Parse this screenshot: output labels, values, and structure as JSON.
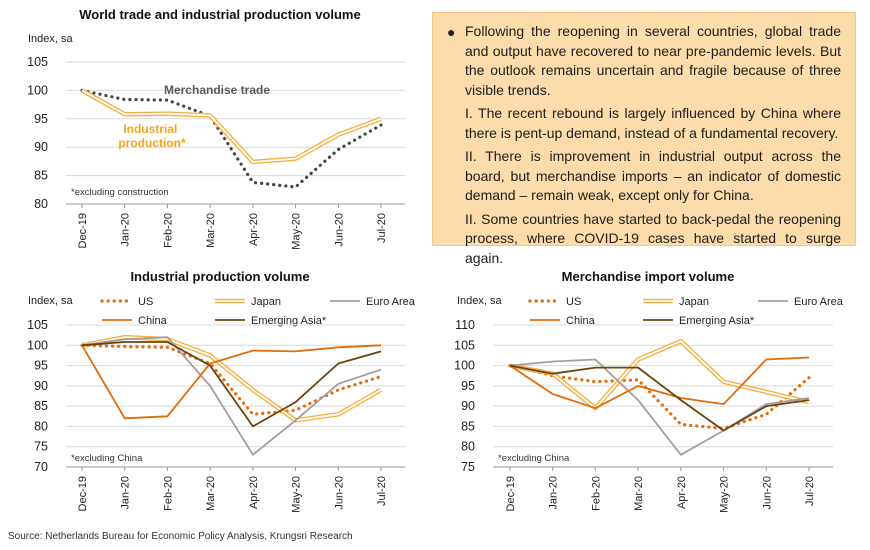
{
  "colors": {
    "gold": "#f5b041",
    "orange": "#e36c0a",
    "gray": "#a89c9a",
    "brown": "#6b4410",
    "dotted": "#454545",
    "infobox": "#fbdcaa"
  },
  "info_box": {
    "bullet": "Following the reopening in several countries, global trade and output have recovered to near pre-pandemic levels. But the outlook remains uncertain and fragile because of three visible trends.",
    "points": [
      "I. The recent rebound is largely influenced by China where there is pent-up demand, instead of a fundamental recovery.",
      "II. There is improvement in industrial output across the board, but merchandise imports – an indicator of domestic demand – remain weak, except only for China.",
      "II. Some countries have started to back-pedal the reopening process, where COVID-19 cases have started to surge again."
    ]
  },
  "source": "Source: Netherlands Bureau for Economic Policy Analysis, Krungsri Research",
  "chart_data": [
    {
      "type": "line",
      "title": "World trade and industrial production volume",
      "ylabel": "Index, sa",
      "note": "*excluding construction",
      "categories": [
        "Dec-19",
        "Jan-20",
        "Feb-20",
        "Mar-20",
        "Apr-20",
        "May-20",
        "Jun-20",
        "Jul-20"
      ],
      "ylim": [
        80,
        105
      ],
      "yticks": [
        80,
        85,
        90,
        95,
        100,
        105
      ],
      "grid": true,
      "series": [
        {
          "name": "Merchandise trade",
          "style": "dotted",
          "color": "#454545",
          "values": [
            100,
            98.4,
            98.3,
            95.5,
            83.8,
            83.0,
            89.6,
            93.9
          ]
        },
        {
          "name": "Industrial production*",
          "style": "double",
          "color": "#f5b041",
          "values": [
            100,
            95.8,
            95.9,
            95.6,
            87.4,
            88.0,
            92.2,
            95.0
          ]
        }
      ]
    },
    {
      "type": "line",
      "title": "Industrial production volume",
      "ylabel": "Index, sa",
      "note": "*excluding China",
      "categories": [
        "Dec-19",
        "Jan-20",
        "Feb-20",
        "Mar-20",
        "Apr-20",
        "May-20",
        "Jun-20",
        "Jul-20"
      ],
      "ylim": [
        70,
        105
      ],
      "yticks": [
        70,
        75,
        80,
        85,
        90,
        95,
        100,
        105
      ],
      "grid": true,
      "legend": "top",
      "series": [
        {
          "name": "US",
          "style": "dotted",
          "color": "#e36c0a",
          "values": [
            100,
            99.7,
            99.5,
            95.5,
            83.0,
            84.0,
            89.0,
            92.3
          ]
        },
        {
          "name": "Japan",
          "style": "double",
          "color": "#f5b041",
          "values": [
            100,
            102.0,
            101.5,
            97.5,
            89.0,
            81.5,
            83.0,
            89.0
          ]
        },
        {
          "name": "Euro Area",
          "style": "solid",
          "color": "#a89c9a",
          "values": [
            100,
            101.5,
            102.0,
            90.0,
            73.0,
            81.5,
            90.5,
            94.0
          ]
        },
        {
          "name": "China",
          "style": "solid",
          "color": "#e36c0a",
          "values": [
            100,
            82.0,
            82.5,
            95.5,
            98.7,
            98.5,
            99.5,
            100.0
          ]
        },
        {
          "name": "Emerging Asia*",
          "style": "solid",
          "color": "#6b4410",
          "values": [
            100,
            100.8,
            100.8,
            95.0,
            80.0,
            86.0,
            95.5,
            98.5
          ]
        }
      ]
    },
    {
      "type": "line",
      "title": "Merchandise import volume",
      "ylabel": "Index, sa",
      "note": "*excluding China",
      "categories": [
        "Dec-19",
        "Jan-20",
        "Feb-20",
        "Mar-20",
        "Apr-20",
        "May-20",
        "Jun-20",
        "Jul-20"
      ],
      "ylim": [
        75,
        110
      ],
      "yticks": [
        75,
        80,
        85,
        90,
        95,
        100,
        105,
        110
      ],
      "grid": true,
      "legend": "top",
      "series": [
        {
          "name": "US",
          "style": "dotted",
          "color": "#e36c0a",
          "values": [
            100,
            97.5,
            96.0,
            96.5,
            85.5,
            84.5,
            88.0,
            97.0
          ]
        },
        {
          "name": "Japan",
          "style": "double",
          "color": "#f5b041",
          "values": [
            100,
            98.0,
            89.5,
            101.5,
            106.0,
            96.0,
            93.5,
            91.0
          ]
        },
        {
          "name": "Euro Area",
          "style": "solid",
          "color": "#a89c9a",
          "values": [
            100,
            101.0,
            101.5,
            91.5,
            78.0,
            84.0,
            90.5,
            92.0
          ]
        },
        {
          "name": "China",
          "style": "solid",
          "color": "#e36c0a",
          "values": [
            100,
            93.0,
            89.5,
            95.0,
            92.0,
            90.5,
            101.5,
            102.0
          ]
        },
        {
          "name": "Emerging Asia*",
          "style": "solid",
          "color": "#6b4410",
          "values": [
            100,
            98.0,
            99.5,
            99.5,
            91.5,
            84.0,
            90.0,
            91.5
          ]
        }
      ]
    }
  ]
}
